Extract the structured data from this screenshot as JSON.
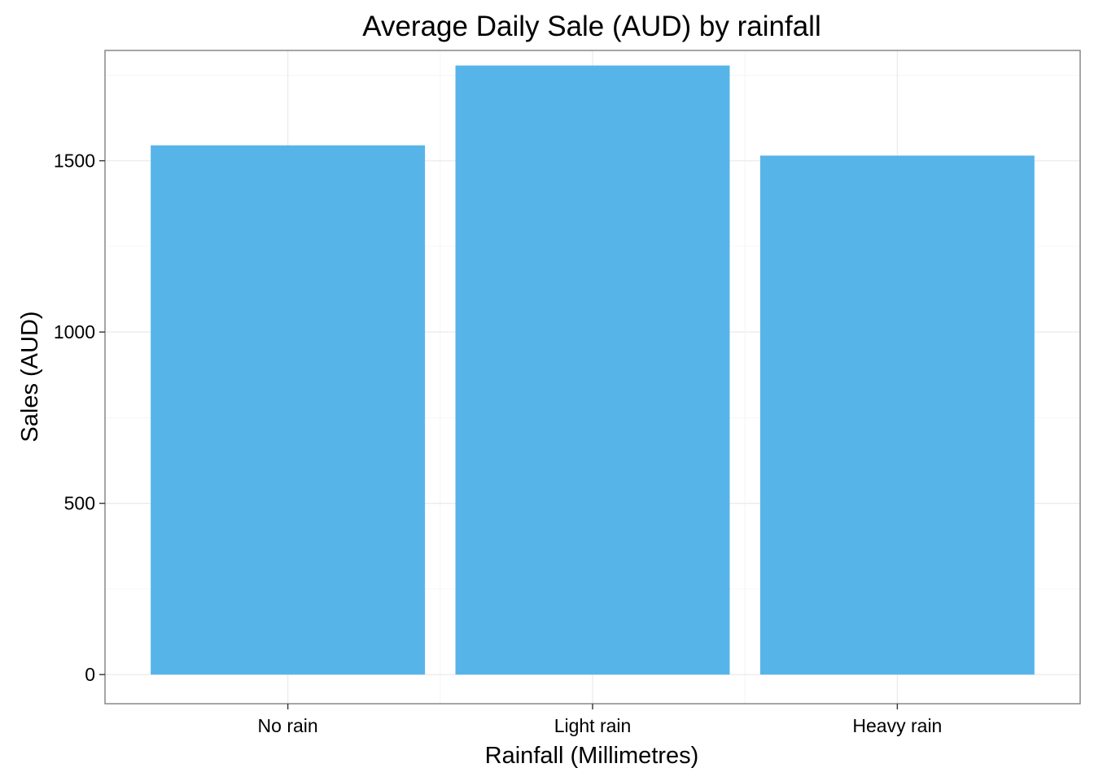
{
  "chart_data": {
    "type": "bar",
    "title": "Average Daily Sale (AUD) by rainfall",
    "xlabel": "Rainfall (Millimetres)",
    "ylabel": "Sales (AUD)",
    "categories": [
      "No rain",
      "Light rain",
      "Heavy rain"
    ],
    "values": [
      1545,
      1778,
      1515
    ],
    "ylim": [
      -85,
      1822
    ],
    "yticks": [
      0,
      500,
      1000,
      1500
    ],
    "ytick_labels": [
      "0",
      "500",
      "1000",
      "1500"
    ],
    "bar_color": "#56B4E9",
    "grid": true,
    "legend": "none"
  }
}
